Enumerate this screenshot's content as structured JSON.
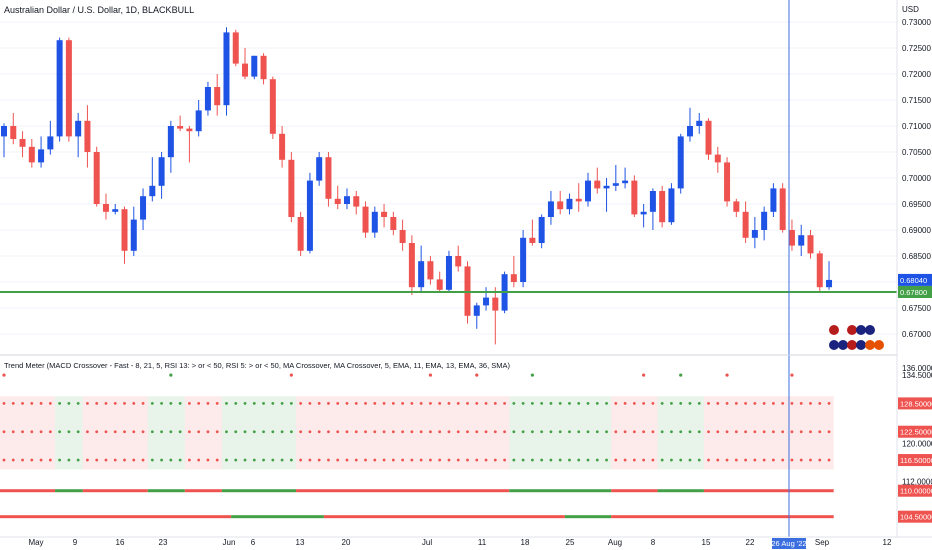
{
  "header": {
    "title": "Australian Dollar / U.S. Dollar, 1D, BLACKBULL",
    "currency": "USD"
  },
  "indicator": {
    "label": "Trend Meter (MACD Crossover - Fast - 8, 21, 5, RSI 13: > or < 50, RSI 5: > or < 50, MA Crossover, MA Crossover, 5, EMA, 11, EMA, 13, EMA, 36, SMA)"
  },
  "colors": {
    "up": "#1e53e5",
    "down": "#ef5350",
    "green": "#43a047",
    "cursor": "#3b6fe0",
    "support": "#43a047"
  },
  "price_axis": {
    "ticks": [
      "0.73000",
      "0.72500",
      "0.72000",
      "0.71500",
      "0.71000",
      "0.70500",
      "0.70000",
      "0.69500",
      "0.69000",
      "0.68500",
      "0.68000",
      "0.67500",
      "0.67000"
    ],
    "last_price_tag": "0.68040",
    "support_tag": "0.67800"
  },
  "indicator_axis": {
    "ticks": [
      "136.00000",
      "134.50000",
      "120.00000",
      "112.00000"
    ],
    "tags": [
      "128.50000",
      "122.50000",
      "116.50000",
      "110.00000",
      "104.50000"
    ]
  },
  "time_axis": {
    "labels": [
      "May",
      "9",
      "16",
      "23",
      "Jun",
      "6",
      "13",
      "20",
      "Jul",
      "11",
      "18",
      "25",
      "Aug",
      "8",
      "15",
      "22",
      "Sep",
      "12"
    ],
    "cursor_label": "26 Aug '22"
  },
  "chart_data": {
    "type": "candlestick",
    "title": "Australian Dollar / U.S. Dollar, 1D, BLACKBULL",
    "ylabel": "USD",
    "ylim": [
      0.6665,
      0.7335
    ],
    "support_level": 0.678,
    "last_price": 0.6804,
    "cursor_date": "26 Aug '22",
    "series": [
      {
        "open": 0.708,
        "high": 0.7105,
        "low": 0.704,
        "close": 0.71
      },
      {
        "open": 0.71,
        "high": 0.7125,
        "low": 0.7065,
        "close": 0.7075
      },
      {
        "open": 0.7075,
        "high": 0.709,
        "low": 0.704,
        "close": 0.706
      },
      {
        "open": 0.706,
        "high": 0.7075,
        "low": 0.702,
        "close": 0.703
      },
      {
        "open": 0.703,
        "high": 0.708,
        "low": 0.702,
        "close": 0.7055
      },
      {
        "open": 0.7055,
        "high": 0.711,
        "low": 0.7045,
        "close": 0.708
      },
      {
        "open": 0.708,
        "high": 0.727,
        "low": 0.707,
        "close": 0.7265
      },
      {
        "open": 0.7265,
        "high": 0.727,
        "low": 0.707,
        "close": 0.708
      },
      {
        "open": 0.708,
        "high": 0.7125,
        "low": 0.704,
        "close": 0.711
      },
      {
        "open": 0.711,
        "high": 0.714,
        "low": 0.702,
        "close": 0.705
      },
      {
        "open": 0.705,
        "high": 0.706,
        "low": 0.6945,
        "close": 0.695
      },
      {
        "open": 0.695,
        "high": 0.697,
        "low": 0.692,
        "close": 0.6935
      },
      {
        "open": 0.6935,
        "high": 0.695,
        "low": 0.693,
        "close": 0.694
      },
      {
        "open": 0.694,
        "high": 0.6945,
        "low": 0.6835,
        "close": 0.686
      },
      {
        "open": 0.686,
        "high": 0.6945,
        "low": 0.685,
        "close": 0.692
      },
      {
        "open": 0.692,
        "high": 0.698,
        "low": 0.69,
        "close": 0.6965
      },
      {
        "open": 0.6965,
        "high": 0.704,
        "low": 0.6955,
        "close": 0.6985
      },
      {
        "open": 0.6985,
        "high": 0.705,
        "low": 0.696,
        "close": 0.704
      },
      {
        "open": 0.704,
        "high": 0.711,
        "low": 0.701,
        "close": 0.71
      },
      {
        "open": 0.71,
        "high": 0.712,
        "low": 0.709,
        "close": 0.7095
      },
      {
        "open": 0.7095,
        "high": 0.71,
        "low": 0.703,
        "close": 0.709
      },
      {
        "open": 0.709,
        "high": 0.715,
        "low": 0.708,
        "close": 0.713
      },
      {
        "open": 0.713,
        "high": 0.7185,
        "low": 0.712,
        "close": 0.7175
      },
      {
        "open": 0.7175,
        "high": 0.72,
        "low": 0.712,
        "close": 0.714
      },
      {
        "open": 0.714,
        "high": 0.729,
        "low": 0.712,
        "close": 0.728
      },
      {
        "open": 0.728,
        "high": 0.7285,
        "low": 0.7215,
        "close": 0.722
      },
      {
        "open": 0.722,
        "high": 0.725,
        "low": 0.719,
        "close": 0.7195
      },
      {
        "open": 0.7195,
        "high": 0.7235,
        "low": 0.719,
        "close": 0.7235
      },
      {
        "open": 0.7235,
        "high": 0.724,
        "low": 0.718,
        "close": 0.719
      },
      {
        "open": 0.719,
        "high": 0.7195,
        "low": 0.7075,
        "close": 0.7085
      },
      {
        "open": 0.7085,
        "high": 0.71,
        "low": 0.702,
        "close": 0.7035
      },
      {
        "open": 0.7035,
        "high": 0.705,
        "low": 0.6915,
        "close": 0.6925
      },
      {
        "open": 0.6925,
        "high": 0.6935,
        "low": 0.685,
        "close": 0.686
      },
      {
        "open": 0.686,
        "high": 0.701,
        "low": 0.6855,
        "close": 0.6995
      },
      {
        "open": 0.6995,
        "high": 0.705,
        "low": 0.6985,
        "close": 0.704
      },
      {
        "open": 0.704,
        "high": 0.705,
        "low": 0.6945,
        "close": 0.696
      },
      {
        "open": 0.696,
        "high": 0.6985,
        "low": 0.694,
        "close": 0.695
      },
      {
        "open": 0.695,
        "high": 0.698,
        "low": 0.694,
        "close": 0.6965
      },
      {
        "open": 0.6965,
        "high": 0.6975,
        "low": 0.693,
        "close": 0.6945
      },
      {
        "open": 0.6945,
        "high": 0.6955,
        "low": 0.6885,
        "close": 0.6895
      },
      {
        "open": 0.6895,
        "high": 0.6945,
        "low": 0.6885,
        "close": 0.6935
      },
      {
        "open": 0.6935,
        "high": 0.695,
        "low": 0.6905,
        "close": 0.6925
      },
      {
        "open": 0.6925,
        "high": 0.6935,
        "low": 0.689,
        "close": 0.69
      },
      {
        "open": 0.69,
        "high": 0.692,
        "low": 0.686,
        "close": 0.6875
      },
      {
        "open": 0.6875,
        "high": 0.689,
        "low": 0.6775,
        "close": 0.679
      },
      {
        "open": 0.679,
        "high": 0.687,
        "low": 0.678,
        "close": 0.684
      },
      {
        "open": 0.684,
        "high": 0.685,
        "low": 0.6795,
        "close": 0.6805
      },
      {
        "open": 0.6805,
        "high": 0.682,
        "low": 0.678,
        "close": 0.6785
      },
      {
        "open": 0.6785,
        "high": 0.686,
        "low": 0.678,
        "close": 0.685
      },
      {
        "open": 0.685,
        "high": 0.687,
        "low": 0.682,
        "close": 0.683
      },
      {
        "open": 0.683,
        "high": 0.684,
        "low": 0.672,
        "close": 0.6735
      },
      {
        "open": 0.6735,
        "high": 0.676,
        "low": 0.671,
        "close": 0.6755
      },
      {
        "open": 0.6755,
        "high": 0.679,
        "low": 0.6745,
        "close": 0.677
      },
      {
        "open": 0.677,
        "high": 0.679,
        "low": 0.668,
        "close": 0.6745
      },
      {
        "open": 0.6745,
        "high": 0.682,
        "low": 0.674,
        "close": 0.6815
      },
      {
        "open": 0.6815,
        "high": 0.685,
        "low": 0.679,
        "close": 0.68
      },
      {
        "open": 0.68,
        "high": 0.69,
        "low": 0.679,
        "close": 0.6885
      },
      {
        "open": 0.6885,
        "high": 0.692,
        "low": 0.687,
        "close": 0.6875
      },
      {
        "open": 0.6875,
        "high": 0.693,
        "low": 0.6865,
        "close": 0.6925
      },
      {
        "open": 0.6925,
        "high": 0.6975,
        "low": 0.691,
        "close": 0.6955
      },
      {
        "open": 0.6955,
        "high": 0.6975,
        "low": 0.693,
        "close": 0.694
      },
      {
        "open": 0.694,
        "high": 0.697,
        "low": 0.693,
        "close": 0.696
      },
      {
        "open": 0.696,
        "high": 0.699,
        "low": 0.6935,
        "close": 0.6955
      },
      {
        "open": 0.6955,
        "high": 0.701,
        "low": 0.6945,
        "close": 0.6995
      },
      {
        "open": 0.6995,
        "high": 0.702,
        "low": 0.697,
        "close": 0.698
      },
      {
        "open": 0.698,
        "high": 0.7,
        "low": 0.6935,
        "close": 0.6985
      },
      {
        "open": 0.6985,
        "high": 0.7025,
        "low": 0.6975,
        "close": 0.699
      },
      {
        "open": 0.699,
        "high": 0.702,
        "low": 0.698,
        "close": 0.6995
      },
      {
        "open": 0.6995,
        "high": 0.7005,
        "low": 0.6925,
        "close": 0.693
      },
      {
        "open": 0.693,
        "high": 0.695,
        "low": 0.6905,
        "close": 0.6935
      },
      {
        "open": 0.6935,
        "high": 0.698,
        "low": 0.69,
        "close": 0.6975
      },
      {
        "open": 0.6975,
        "high": 0.6985,
        "low": 0.6905,
        "close": 0.6915
      },
      {
        "open": 0.6915,
        "high": 0.699,
        "low": 0.691,
        "close": 0.698
      },
      {
        "open": 0.698,
        "high": 0.7085,
        "low": 0.697,
        "close": 0.708
      },
      {
        "open": 0.708,
        "high": 0.7135,
        "low": 0.707,
        "close": 0.71
      },
      {
        "open": 0.71,
        "high": 0.7125,
        "low": 0.7085,
        "close": 0.711
      },
      {
        "open": 0.711,
        "high": 0.7115,
        "low": 0.7035,
        "close": 0.7045
      },
      {
        "open": 0.7045,
        "high": 0.706,
        "low": 0.701,
        "close": 0.703
      },
      {
        "open": 0.703,
        "high": 0.704,
        "low": 0.6945,
        "close": 0.6955
      },
      {
        "open": 0.6955,
        "high": 0.696,
        "low": 0.6925,
        "close": 0.6935
      },
      {
        "open": 0.6935,
        "high": 0.6955,
        "low": 0.6875,
        "close": 0.6885
      },
      {
        "open": 0.6885,
        "high": 0.6925,
        "low": 0.6865,
        "close": 0.69
      },
      {
        "open": 0.69,
        "high": 0.6945,
        "low": 0.688,
        "close": 0.6935
      },
      {
        "open": 0.6935,
        "high": 0.699,
        "low": 0.6925,
        "close": 0.698
      },
      {
        "open": 0.698,
        "high": 0.699,
        "low": 0.6895,
        "close": 0.69
      },
      {
        "open": 0.69,
        "high": 0.692,
        "low": 0.686,
        "close": 0.687
      },
      {
        "open": 0.687,
        "high": 0.691,
        "low": 0.685,
        "close": 0.689
      },
      {
        "open": 0.689,
        "high": 0.69,
        "low": 0.6845,
        "close": 0.6855
      },
      {
        "open": 0.6855,
        "high": 0.686,
        "low": 0.678,
        "close": 0.679
      },
      {
        "open": 0.679,
        "high": 0.684,
        "low": 0.6785,
        "close": 0.6804
      }
    ],
    "trend_meter": {
      "rows": [
        128.5,
        122.5,
        116.5
      ],
      "ribbon_levels": [
        110.0,
        104.5
      ],
      "state_by_candle": "rrrrrrgggrrrrrrrggggrrrrggggggggrrrrrrrrrrrrrrrrrrrrrrrgggggggggggrrrrrgggggrrrrrrrrrrrrrrrrrr"
    }
  }
}
